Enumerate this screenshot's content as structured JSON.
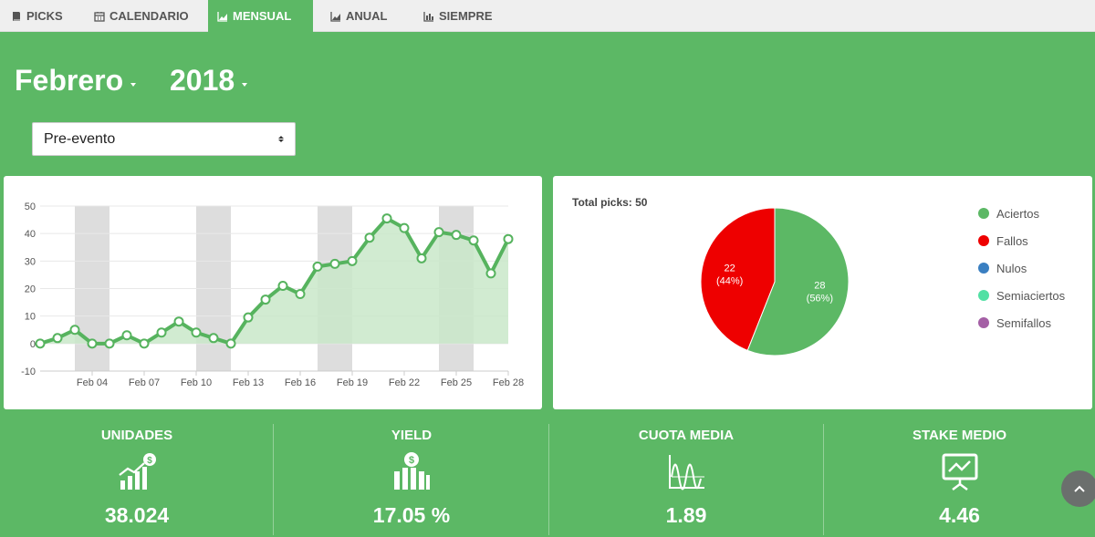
{
  "tabs": [
    {
      "label": "PICKS",
      "icon": "book-icon",
      "active": false
    },
    {
      "label": "CALENDARIO",
      "icon": "calendar-icon",
      "active": false
    },
    {
      "label": "MENSUAL",
      "icon": "area-chart-icon",
      "active": true
    },
    {
      "label": "ANUAL",
      "icon": "area-chart-icon",
      "active": false
    },
    {
      "label": "SIEMPRE",
      "icon": "bar-chart-icon",
      "active": false
    }
  ],
  "period": {
    "month": "Febrero",
    "year": "2018"
  },
  "filter": {
    "selected": "Pre-evento"
  },
  "colors": {
    "brand": "#5cb865",
    "line": "#56b35e",
    "fill": "#c9e8c9",
    "weekend": "#dddddd"
  },
  "chart_data": {
    "type": "area",
    "x": [
      "Feb 01",
      "Feb 02",
      "Feb 03",
      "Feb 04",
      "Feb 05",
      "Feb 06",
      "Feb 07",
      "Feb 08",
      "Feb 09",
      "Feb 10",
      "Feb 11",
      "Feb 12",
      "Feb 13",
      "Feb 14",
      "Feb 15",
      "Feb 16",
      "Feb 17",
      "Feb 18",
      "Feb 19",
      "Feb 20",
      "Feb 21",
      "Feb 22",
      "Feb 23",
      "Feb 24",
      "Feb 25",
      "Feb 26",
      "Feb 27",
      "Feb 28"
    ],
    "values": [
      0,
      2,
      5,
      0,
      0,
      3,
      0,
      4,
      8,
      4,
      2,
      0,
      9.5,
      16,
      21,
      18,
      28,
      29,
      30,
      38.5,
      45.5,
      42,
      31,
      40.5,
      39.5,
      37.5,
      25.5,
      38
    ],
    "ylim": [
      -10,
      50
    ],
    "yticks": [
      -10,
      0,
      10,
      20,
      30,
      40,
      50
    ],
    "xtick_labels": [
      "Feb 04",
      "Feb 07",
      "Feb 10",
      "Feb 13",
      "Feb 16",
      "Feb 19",
      "Feb 22",
      "Feb 25",
      "Feb 28"
    ],
    "xtick_dates": [
      4,
      7,
      10,
      13,
      16,
      19,
      22,
      25,
      28
    ],
    "weekend_bands": [
      [
        3,
        5
      ],
      [
        10,
        12
      ],
      [
        17,
        19
      ],
      [
        24,
        26
      ]
    ],
    "grid": true
  },
  "pie": {
    "total_label": "Total picks: 50",
    "slices": [
      {
        "name": "Aciertos",
        "value": 28,
        "pct": "56%",
        "color": "#5cb865"
      },
      {
        "name": "Fallos",
        "value": 22,
        "pct": "44%",
        "color": "#ee0000"
      },
      {
        "name": "Nulos",
        "value": 0,
        "color": "#3a7fc1"
      },
      {
        "name": "Semiaciertos",
        "value": 0,
        "color": "#52e0a4"
      },
      {
        "name": "Semifallos",
        "value": 0,
        "color": "#a45fa5"
      }
    ]
  },
  "stats": [
    {
      "title": "UNIDADES",
      "value": "38.024",
      "icon": "growth-chart-dollar-icon"
    },
    {
      "title": "YIELD",
      "value": "17.05 %",
      "icon": "bars-dollar-icon"
    },
    {
      "title": "CUOTA MEDIA",
      "value": "1.89",
      "icon": "waveform-icon"
    },
    {
      "title": "STAKE MEDIO",
      "value": "4.46",
      "icon": "presentation-board-icon"
    }
  ]
}
